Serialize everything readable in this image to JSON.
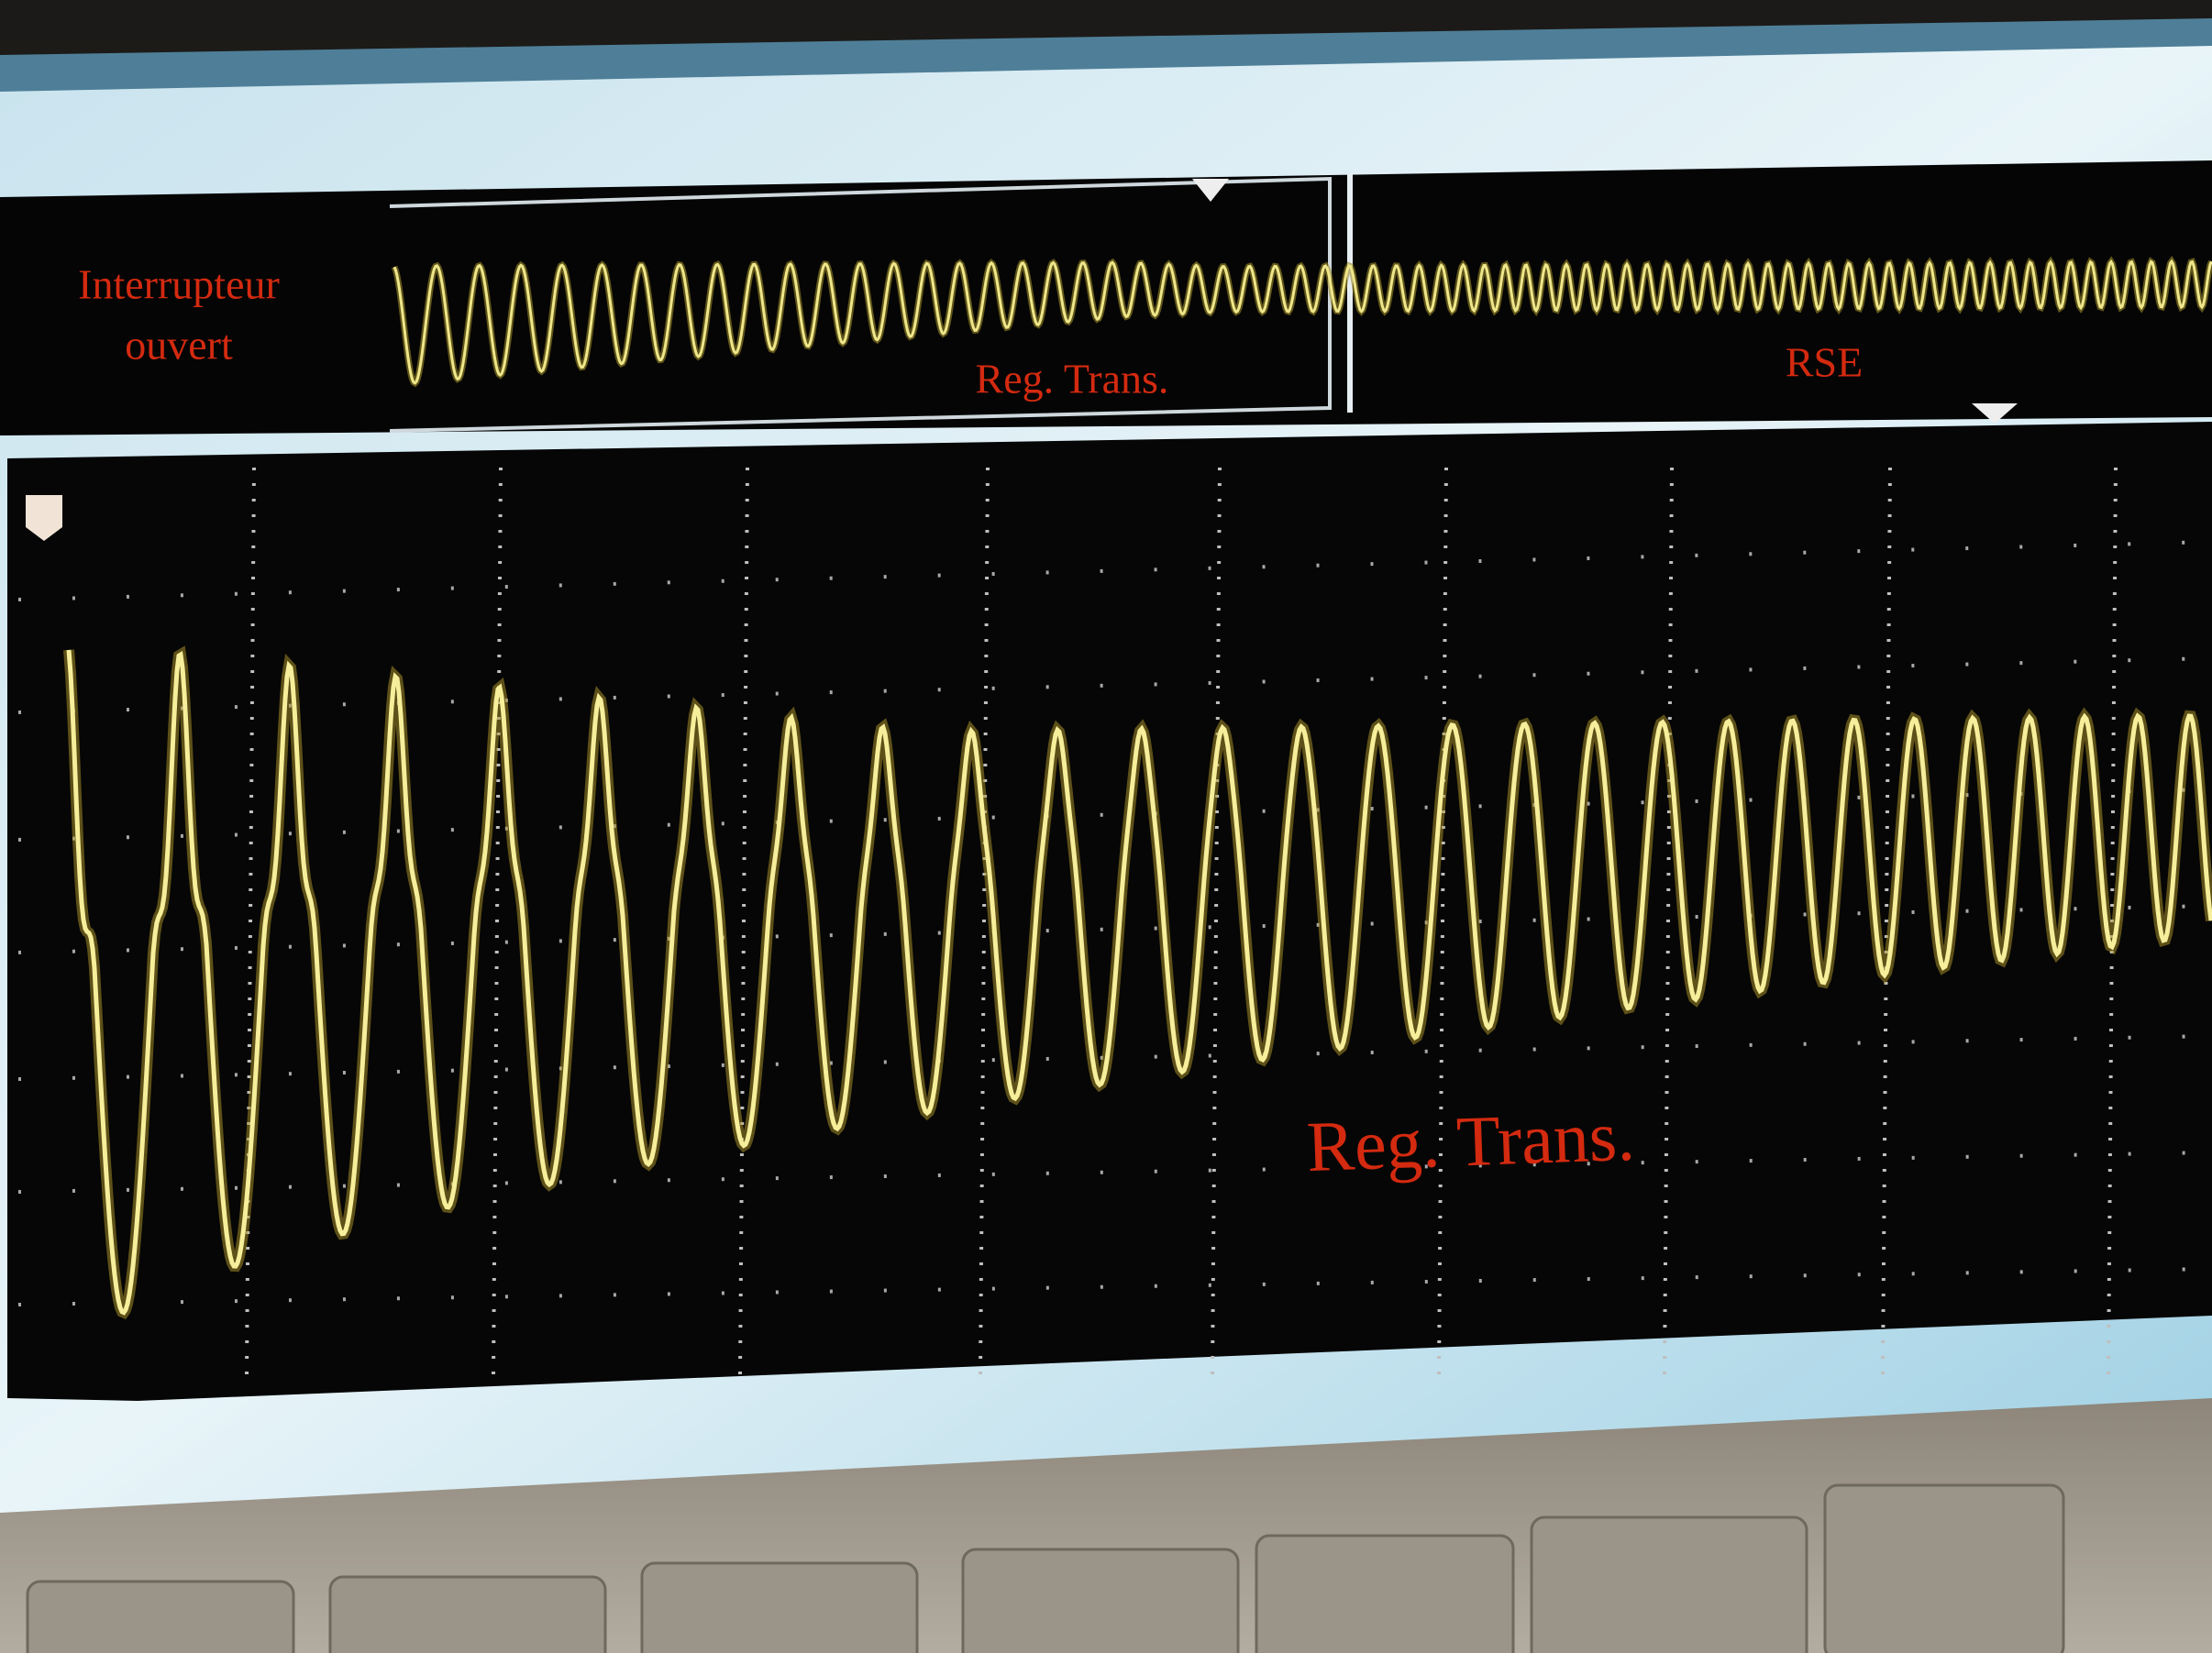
{
  "annotations": {
    "switch_open": [
      "Interrupteur",
      "ouvert"
    ],
    "top_transient": "Reg. Trans.",
    "top_steady": "RSE",
    "bottom_transient": "Reg. Trans."
  }
}
